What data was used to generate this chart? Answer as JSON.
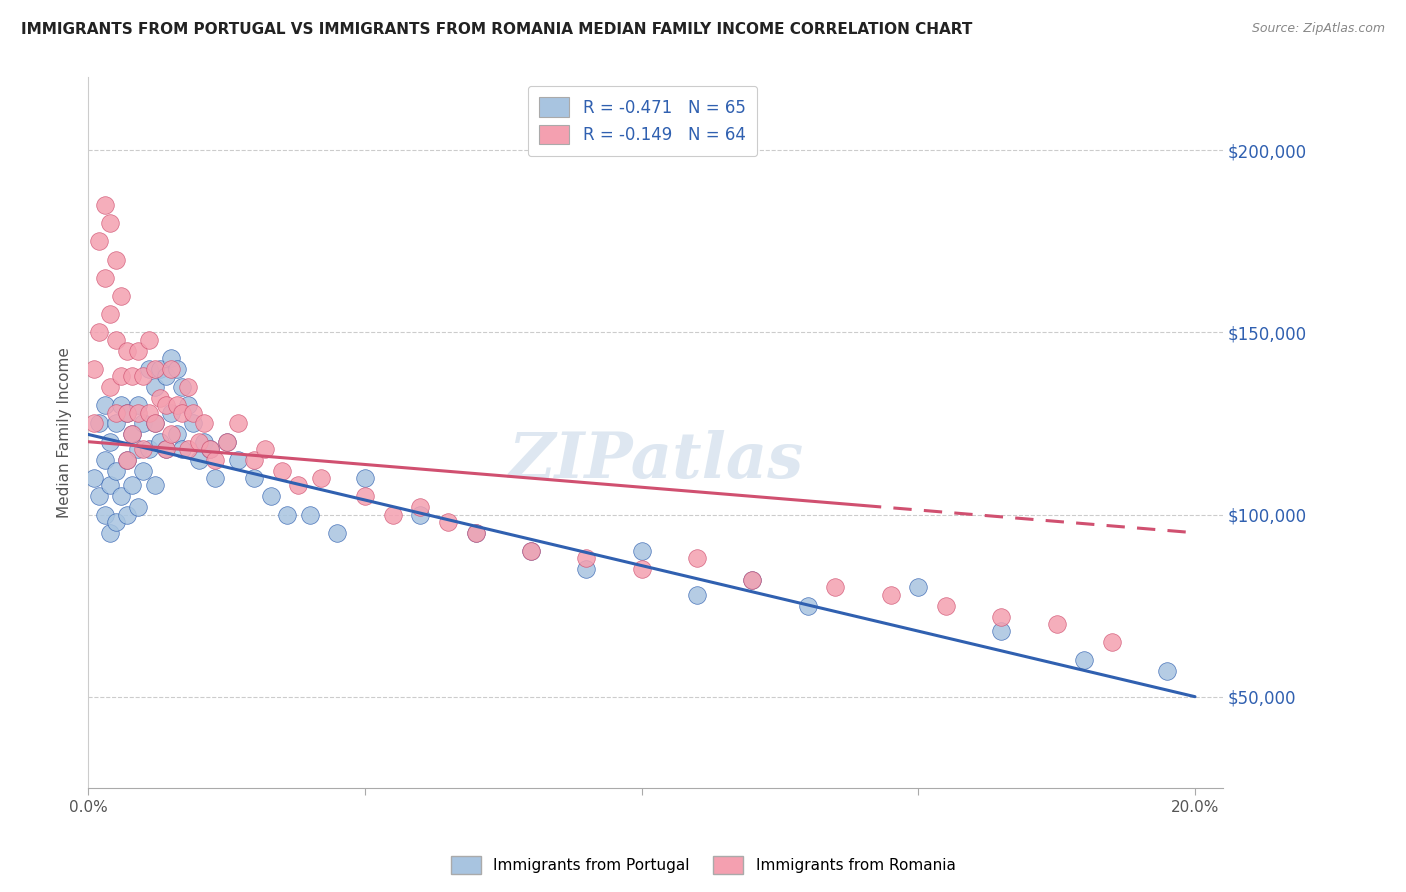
{
  "title": "IMMIGRANTS FROM PORTUGAL VS IMMIGRANTS FROM ROMANIA MEDIAN FAMILY INCOME CORRELATION CHART",
  "source": "Source: ZipAtlas.com",
  "ylabel": "Median Family Income",
  "yticks": [
    50000,
    100000,
    150000,
    200000
  ],
  "ytick_labels": [
    "$50,000",
    "$100,000",
    "$150,000",
    "$200,000"
  ],
  "xlim": [
    0.0,
    0.205
  ],
  "ylim": [
    25000,
    220000
  ],
  "legend_r_portugal": "R = -0.471",
  "legend_n_portugal": "N = 65",
  "legend_r_romania": "R = -0.149",
  "legend_n_romania": "N = 64",
  "color_portugal": "#a8c4e0",
  "color_romania": "#f4a0b0",
  "line_color_portugal": "#3060b0",
  "line_color_romania": "#d05070",
  "watermark": "ZIPatlas",
  "portugal_line_x0": 0.0,
  "portugal_line_y0": 122000,
  "portugal_line_x1": 0.2,
  "portugal_line_y1": 50000,
  "romania_line_x0": 0.0,
  "romania_line_y0": 120000,
  "romania_line_x1": 0.2,
  "romania_line_y1": 95000,
  "romania_line_solid_end": 0.14,
  "portugal_x": [
    0.001,
    0.002,
    0.002,
    0.003,
    0.003,
    0.003,
    0.004,
    0.004,
    0.004,
    0.005,
    0.005,
    0.005,
    0.006,
    0.006,
    0.007,
    0.007,
    0.007,
    0.008,
    0.008,
    0.009,
    0.009,
    0.009,
    0.01,
    0.01,
    0.011,
    0.011,
    0.012,
    0.012,
    0.012,
    0.013,
    0.013,
    0.014,
    0.014,
    0.015,
    0.015,
    0.016,
    0.016,
    0.017,
    0.017,
    0.018,
    0.019,
    0.02,
    0.021,
    0.022,
    0.023,
    0.025,
    0.027,
    0.03,
    0.033,
    0.036,
    0.04,
    0.045,
    0.05,
    0.06,
    0.07,
    0.08,
    0.09,
    0.1,
    0.11,
    0.12,
    0.13,
    0.15,
    0.165,
    0.18,
    0.195
  ],
  "portugal_y": [
    110000,
    125000,
    105000,
    130000,
    115000,
    100000,
    120000,
    108000,
    95000,
    125000,
    112000,
    98000,
    130000,
    105000,
    128000,
    115000,
    100000,
    122000,
    108000,
    130000,
    118000,
    102000,
    125000,
    112000,
    140000,
    118000,
    135000,
    125000,
    108000,
    140000,
    120000,
    138000,
    118000,
    143000,
    128000,
    140000,
    122000,
    135000,
    118000,
    130000,
    125000,
    115000,
    120000,
    118000,
    110000,
    120000,
    115000,
    110000,
    105000,
    100000,
    100000,
    95000,
    110000,
    100000,
    95000,
    90000,
    85000,
    90000,
    78000,
    82000,
    75000,
    80000,
    68000,
    60000,
    57000
  ],
  "romania_x": [
    0.001,
    0.001,
    0.002,
    0.002,
    0.003,
    0.003,
    0.004,
    0.004,
    0.004,
    0.005,
    0.005,
    0.005,
    0.006,
    0.006,
    0.007,
    0.007,
    0.007,
    0.008,
    0.008,
    0.009,
    0.009,
    0.01,
    0.01,
    0.011,
    0.011,
    0.012,
    0.012,
    0.013,
    0.014,
    0.014,
    0.015,
    0.015,
    0.016,
    0.017,
    0.018,
    0.018,
    0.019,
    0.02,
    0.021,
    0.022,
    0.023,
    0.025,
    0.027,
    0.03,
    0.032,
    0.035,
    0.038,
    0.042,
    0.05,
    0.055,
    0.06,
    0.065,
    0.07,
    0.08,
    0.09,
    0.1,
    0.11,
    0.12,
    0.135,
    0.145,
    0.155,
    0.165,
    0.175,
    0.185
  ],
  "romania_y": [
    140000,
    125000,
    175000,
    150000,
    185000,
    165000,
    180000,
    155000,
    135000,
    170000,
    148000,
    128000,
    160000,
    138000,
    145000,
    128000,
    115000,
    138000,
    122000,
    145000,
    128000,
    138000,
    118000,
    148000,
    128000,
    140000,
    125000,
    132000,
    130000,
    118000,
    140000,
    122000,
    130000,
    128000,
    135000,
    118000,
    128000,
    120000,
    125000,
    118000,
    115000,
    120000,
    125000,
    115000,
    118000,
    112000,
    108000,
    110000,
    105000,
    100000,
    102000,
    98000,
    95000,
    90000,
    88000,
    85000,
    88000,
    82000,
    80000,
    78000,
    75000,
    72000,
    70000,
    65000
  ]
}
